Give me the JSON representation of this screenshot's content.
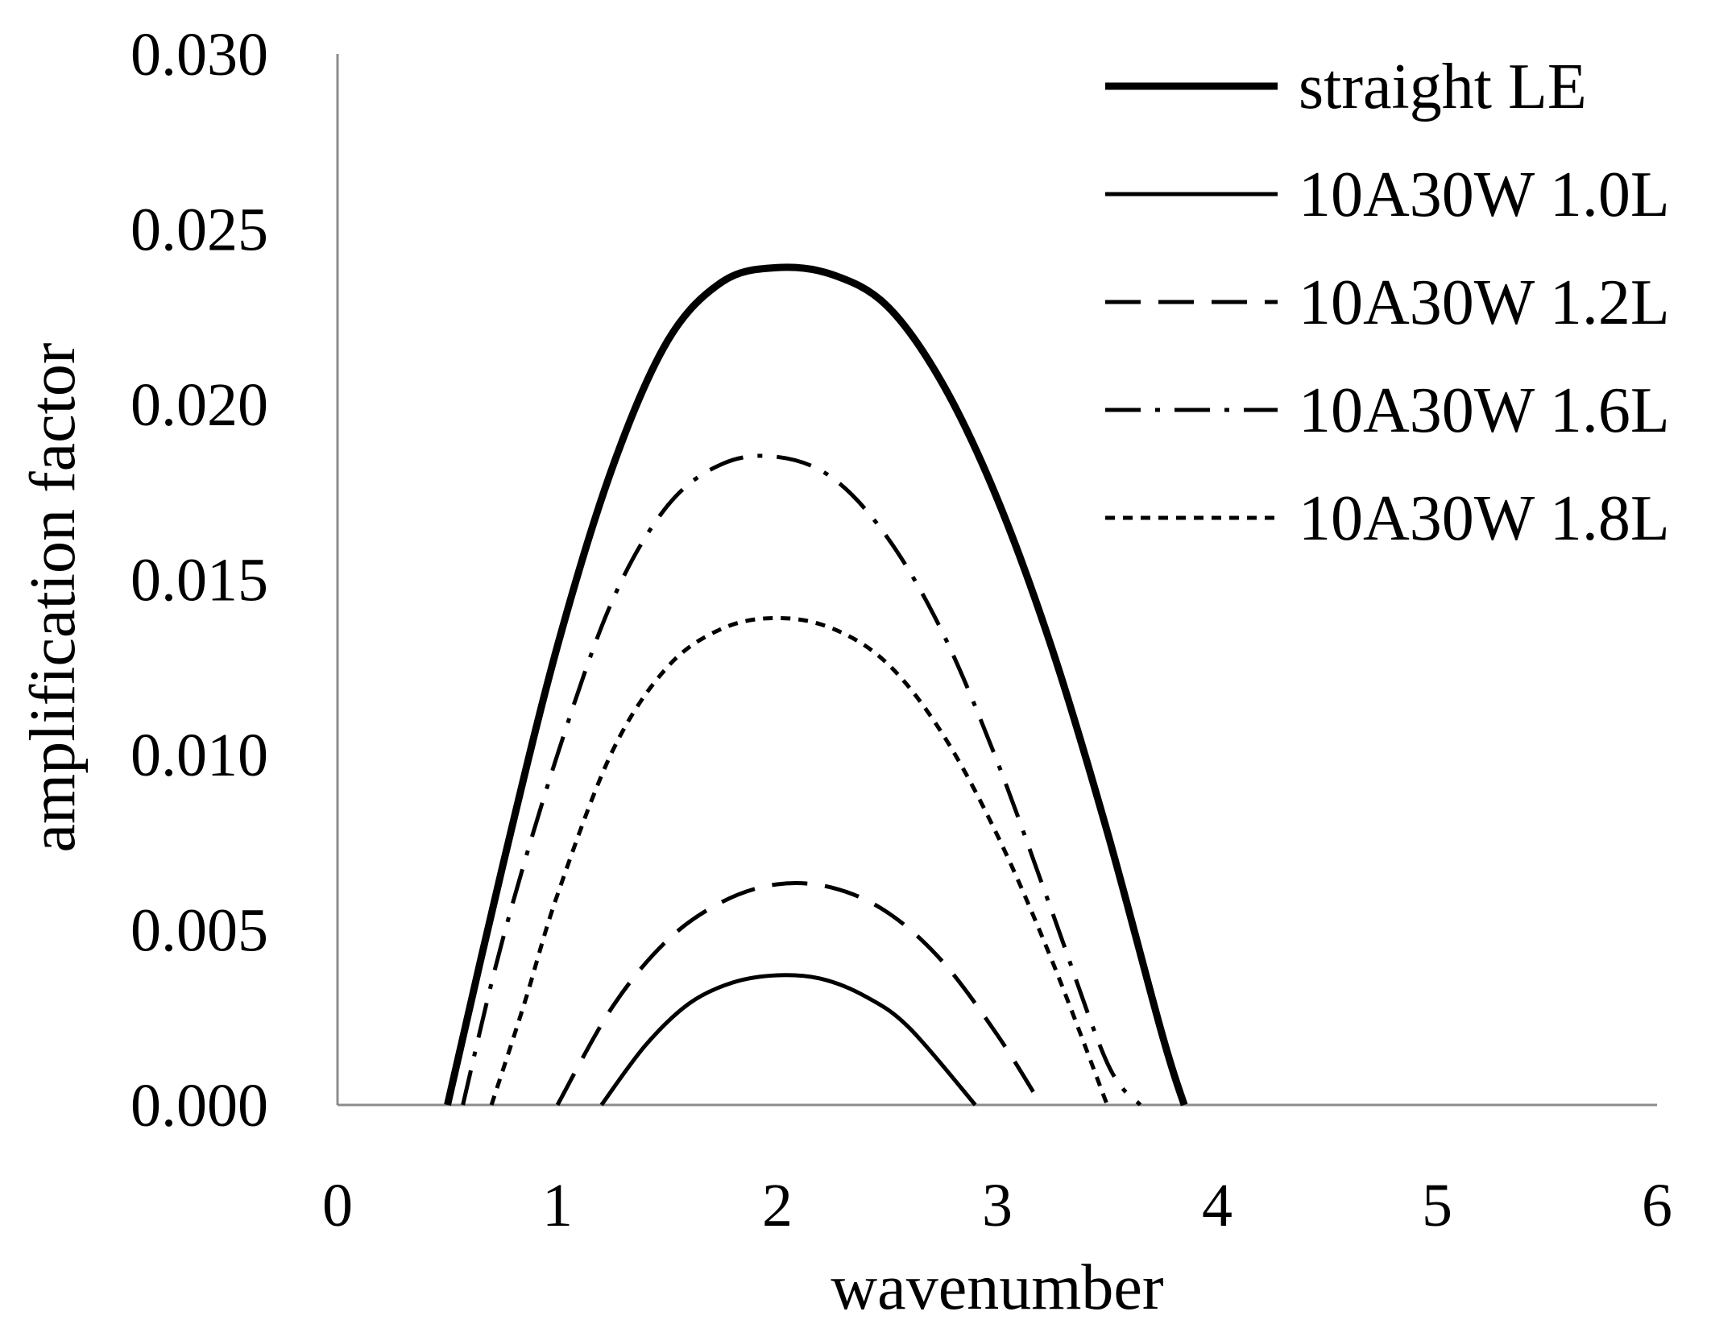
{
  "chart_data": {
    "type": "line",
    "title": "",
    "xlabel": "wavenumber",
    "ylabel": "amplification factor",
    "xlim": [
      0,
      6
    ],
    "ylim": [
      0,
      0.03
    ],
    "xticks": [
      "0",
      "1",
      "2",
      "3",
      "4",
      "5",
      "6"
    ],
    "yticks": [
      "0.000",
      "0.005",
      "0.010",
      "0.015",
      "0.020",
      "0.025",
      "0.030"
    ],
    "grid": false,
    "legend_position": "top-right",
    "series": [
      {
        "name": "straight LE",
        "style": "solid-thick",
        "x": [
          0.5,
          0.75,
          1.0,
          1.25,
          1.5,
          1.75,
          2.0,
          2.25,
          2.5,
          2.75,
          3.0,
          3.25,
          3.5,
          3.75,
          3.85
        ],
        "y": [
          0.0,
          0.0068,
          0.0131,
          0.0182,
          0.0218,
          0.0235,
          0.0239,
          0.0237,
          0.0228,
          0.0206,
          0.0173,
          0.013,
          0.0078,
          0.002,
          0.0
        ]
      },
      {
        "name": "10A30W 1.0L",
        "style": "solid-thin",
        "x": [
          1.2,
          1.4,
          1.6,
          1.8,
          2.0,
          2.2,
          2.4,
          2.6,
          2.9
        ],
        "y": [
          0.0,
          0.0017,
          0.0029,
          0.0035,
          0.0037,
          0.0036,
          0.0031,
          0.0022,
          0.0
        ]
      },
      {
        "name": "10A30W 1.2L",
        "style": "dashed",
        "x": [
          1.0,
          1.25,
          1.5,
          1.75,
          2.0,
          2.25,
          2.5,
          2.75,
          3.0,
          3.2
        ],
        "y": [
          0.0,
          0.0028,
          0.0047,
          0.0058,
          0.0063,
          0.0062,
          0.0055,
          0.0041,
          0.002,
          0.0
        ]
      },
      {
        "name": "10A30W 1.6L",
        "style": "dash-dot",
        "x": [
          0.57,
          0.75,
          1.0,
          1.25,
          1.5,
          1.75,
          2.0,
          2.25,
          2.5,
          2.75,
          3.0,
          3.25,
          3.5,
          3.65
        ],
        "y": [
          0.0,
          0.0047,
          0.01,
          0.0144,
          0.0171,
          0.0183,
          0.0185,
          0.0179,
          0.0162,
          0.0135,
          0.0098,
          0.0055,
          0.0012,
          0.0
        ]
      },
      {
        "name": "10A30W 1.8L",
        "style": "dotted",
        "x": [
          0.7,
          0.85,
          1.0,
          1.25,
          1.5,
          1.75,
          2.0,
          2.25,
          2.5,
          2.75,
          3.0,
          3.25,
          3.5
        ],
        "y": [
          0.0,
          0.0029,
          0.006,
          0.0101,
          0.0125,
          0.0136,
          0.0139,
          0.0136,
          0.0126,
          0.0106,
          0.0077,
          0.0041,
          0.0
        ]
      }
    ]
  }
}
